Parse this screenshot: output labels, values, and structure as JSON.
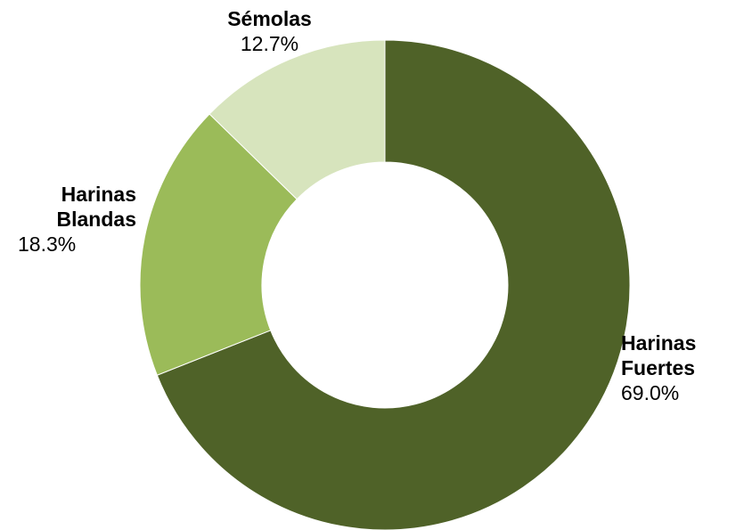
{
  "chart_data": {
    "type": "pie",
    "variant": "donut",
    "title": "",
    "start_angle_deg": 0,
    "direction": "clockwise",
    "slices": [
      {
        "label_lines": [
          "Harinas",
          "Fuertes"
        ],
        "value": 69.0,
        "value_label": "69.0%",
        "color": "#4f6228"
      },
      {
        "label_lines": [
          "Harinas",
          "Blandas"
        ],
        "value": 18.3,
        "value_label": "18.3%",
        "color": "#9bbb59"
      },
      {
        "label_lines": [
          "Sémolas"
        ],
        "value": 12.7,
        "value_label": "12.7%",
        "color": "#d7e4bd"
      }
    ],
    "legend": "none"
  }
}
